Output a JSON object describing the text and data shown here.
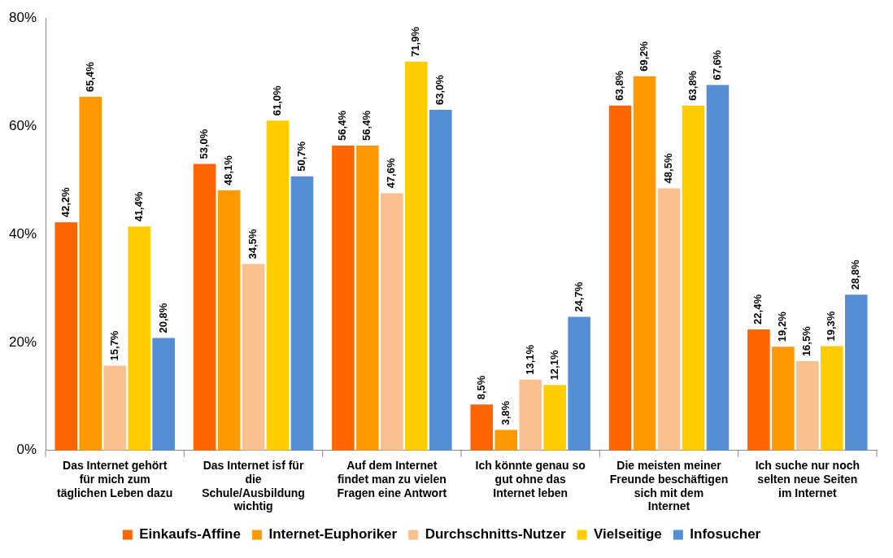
{
  "chart_data": {
    "type": "bar",
    "categories": [
      "Das Internet gehört für mich zum täglichen Leben dazu",
      "Das Internet isf für die Schule/Ausbildung wichtig",
      "Auf dem Internet findet man zu vielen Fragen eine Antwort",
      "Ich könnte genau so gut ohne das Internet leben",
      "Die meisten meiner Freunde beschäftigen sich mit dem Internet",
      "Ich suche nur noch selten neue Seiten im Internet"
    ],
    "series": [
      {
        "name": "Einkaufs-Affine",
        "color": "#ff6600",
        "values": [
          42.2,
          53.0,
          56.4,
          8.5,
          63.8,
          22.4
        ],
        "value_labels": [
          "42,2%",
          "53,0%",
          "56,4%",
          "8,5%",
          "63,8%",
          "22,4%"
        ]
      },
      {
        "name": "Internet-Euphoriker",
        "color": "#ff9900",
        "values": [
          65.4,
          48.1,
          56.4,
          3.8,
          69.2,
          19.2
        ],
        "value_labels": [
          "65,4%",
          "48,1%",
          "56,4%",
          "3,8%",
          "69,2%",
          "19,2%"
        ]
      },
      {
        "name": "Durchschnitts-Nutzer",
        "color": "#fac090",
        "values": [
          15.7,
          34.5,
          47.6,
          13.1,
          48.5,
          16.5
        ],
        "value_labels": [
          "15,7%",
          "34,5%",
          "47,6%",
          "13,1%",
          "48,5%",
          "16,5%"
        ]
      },
      {
        "name": "Vielseitige",
        "color": "#ffcc00",
        "values": [
          41.4,
          61.0,
          71.9,
          12.1,
          63.8,
          19.3
        ],
        "value_labels": [
          "41,4%",
          "61,0%",
          "71,9%",
          "12,1%",
          "63,8%",
          "19,3%"
        ]
      },
      {
        "name": "Infosucher",
        "color": "#558ed5",
        "values": [
          20.8,
          50.7,
          63.0,
          24.7,
          67.6,
          28.8
        ],
        "value_labels": [
          "20,8%",
          "50,7%",
          "63,0%",
          "24,7%",
          "67,6%",
          "28,8%"
        ]
      }
    ],
    "ylim": [
      0,
      80
    ],
    "yticks": [
      {
        "value": 0,
        "label": "0%"
      },
      {
        "value": 20,
        "label": "20%"
      },
      {
        "value": 40,
        "label": "40%"
      },
      {
        "value": 60,
        "label": "60%"
      },
      {
        "value": 80,
        "label": "80%"
      }
    ],
    "grid": false,
    "legend": "bottom"
  }
}
